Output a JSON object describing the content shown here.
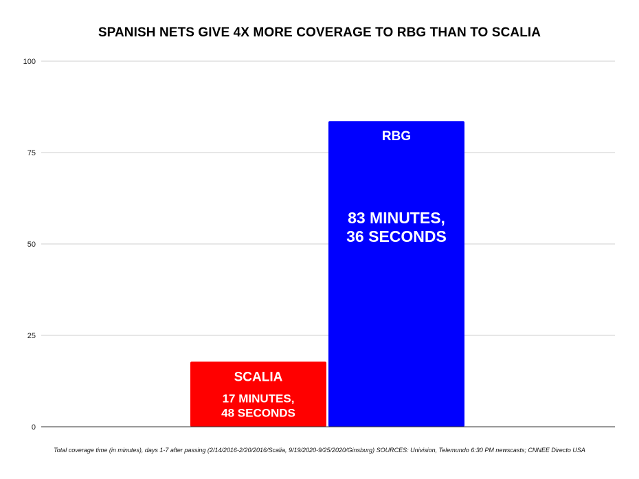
{
  "chart_data": {
    "type": "bar",
    "title": "SPANISH NETS GIVE 4X MORE COVERAGE TO RBG THAN TO SCALIA",
    "categories": [
      "SCALIA",
      "RBG"
    ],
    "values": [
      17.8,
      83.6
    ],
    "value_labels": [
      [
        "17 MINUTES,",
        "48 SECONDS"
      ],
      [
        "83 MINUTES,",
        "36 SECONDS"
      ]
    ],
    "colors": [
      "#ff0000",
      "#0000ff"
    ],
    "ylim": [
      0,
      100
    ],
    "yticks": [
      "0",
      "25",
      "50",
      "75",
      "100"
    ],
    "ytick_values": [
      0,
      25,
      50,
      75,
      100
    ],
    "grid": true,
    "footnote": "Total coverage time (in minutes), days 1-7 after passing (2/14/2016-2/20/2016/Scalia, 9/19/2020-9/25/2020/Ginsburg)  SOURCES: Univision, Telemundo 6:30 PM newscasts; CNNEE Directo USA"
  }
}
